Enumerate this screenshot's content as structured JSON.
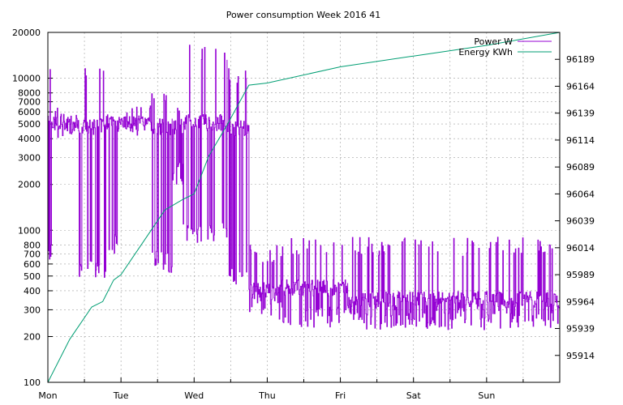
{
  "chart_data": {
    "type": "line",
    "title": "Power consumption Week 2016 41",
    "x_tick_labels": [
      "Mon",
      "Tue",
      "Wed",
      "Thu",
      "Fri",
      "Sat",
      "Sun"
    ],
    "x_range_days": [
      0,
      7
    ],
    "y_left": {
      "scale": "log",
      "range": [
        100,
        20000
      ],
      "tick_labels": [
        "100",
        "200",
        "300",
        "400",
        "500",
        "600",
        "700",
        "800",
        "1000",
        "2000",
        "3000",
        "4000",
        "5000",
        "6000",
        "7000",
        "8000",
        "10000",
        "20000"
      ]
    },
    "y_right": {
      "scale": "linear",
      "range": [
        95889,
        96214
      ],
      "tick_labels": [
        "95914",
        "95939",
        "95964",
        "95989",
        "96014",
        "96039",
        "96064",
        "96089",
        "96114",
        "96139",
        "96164",
        "96189"
      ]
    },
    "grid": true,
    "legend_position": "top-right",
    "series": [
      {
        "name": "Power W",
        "color": "#9400d3",
        "axis": "left",
        "segments": [
          {
            "from": 0.0,
            "to": 0.1,
            "base": 5000,
            "low": 600,
            "high": 12000
          },
          {
            "from": 0.1,
            "to": 0.4,
            "base": 4900,
            "low": 4700,
            "high": 5300
          },
          {
            "from": 0.4,
            "to": 0.8,
            "base": 4800,
            "low": 460,
            "high": 12000
          },
          {
            "from": 0.8,
            "to": 0.95,
            "base": 5100,
            "low": 700,
            "high": 8000
          },
          {
            "from": 0.95,
            "to": 1.42,
            "base": 5000,
            "low": 4800,
            "high": 5500
          },
          {
            "from": 1.42,
            "to": 1.7,
            "base": 4800,
            "low": 520,
            "high": 8000
          },
          {
            "from": 1.7,
            "to": 1.85,
            "base": 4800,
            "low": 2000,
            "high": 8000
          },
          {
            "from": 1.85,
            "to": 2.45,
            "base": 5100,
            "low": 800,
            "high": 17000
          },
          {
            "from": 2.45,
            "to": 2.75,
            "base": 4700,
            "low": 430,
            "high": 12000
          },
          {
            "from": 2.75,
            "to": 3.2,
            "base": 400,
            "low": 250,
            "high": 800
          },
          {
            "from": 3.2,
            "to": 4.1,
            "base": 420,
            "low": 230,
            "high": 900
          },
          {
            "from": 4.1,
            "to": 7.0,
            "base": 350,
            "low": 220,
            "high": 900
          }
        ]
      },
      {
        "name": "Energy KWh",
        "color": "#009e73",
        "axis": "right",
        "points": [
          [
            0.0,
            95889
          ],
          [
            0.3,
            95929
          ],
          [
            0.6,
            95959
          ],
          [
            0.75,
            95964
          ],
          [
            0.9,
            95984
          ],
          [
            1.0,
            95989
          ],
          [
            1.3,
            96019
          ],
          [
            1.6,
            96049
          ],
          [
            1.85,
            96059
          ],
          [
            2.0,
            96064
          ],
          [
            2.2,
            96099
          ],
          [
            2.45,
            96128
          ],
          [
            2.7,
            96159
          ],
          [
            2.75,
            96165
          ],
          [
            3.0,
            96167
          ],
          [
            4.0,
            96182
          ],
          [
            5.0,
            96192
          ],
          [
            6.0,
            96202
          ],
          [
            7.0,
            96214
          ]
        ]
      }
    ]
  }
}
